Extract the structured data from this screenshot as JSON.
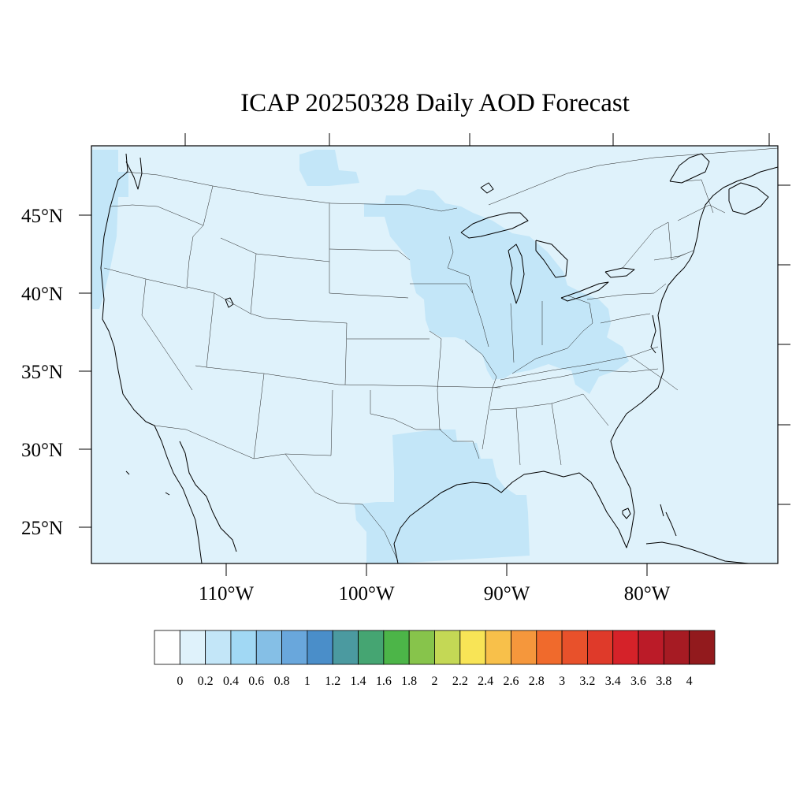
{
  "title": "ICAP 20250328 Daily AOD Forecast",
  "map": {
    "region": "Continental United States",
    "background_color": "#dff2fb",
    "frame_color": "#000000",
    "lon_range": [
      -121,
      -72
    ],
    "lat_range": [
      22.8,
      49.3
    ]
  },
  "axes": {
    "lat_ticks": [
      {
        "value": 45,
        "label": "45°N"
      },
      {
        "value": 40,
        "label": "40°N"
      },
      {
        "value": 35,
        "label": "35°N"
      },
      {
        "value": 30,
        "label": "30°N"
      },
      {
        "value": 25,
        "label": "25°N"
      }
    ],
    "lon_ticks": [
      {
        "value": -110,
        "label": "110°W"
      },
      {
        "value": -100,
        "label": "100°W"
      },
      {
        "value": -90,
        "label": "90°W"
      },
      {
        "value": -80,
        "label": "80°W"
      }
    ]
  },
  "aod_fields": [
    {
      "level": "0.2-0.4",
      "color": "#c3e6f8",
      "areas": [
        "Pacific Northwest coast",
        "Northern Rockies border",
        "Upper Midwest",
        "Great Lakes",
        "Ohio Valley",
        "Appalachians",
        "East Texas",
        "Gulf of Mexico"
      ]
    }
  ],
  "colorbar": {
    "colors": [
      "#ffffff",
      "#dff2fb",
      "#c3e6f8",
      "#a1d8f4",
      "#85bfe6",
      "#69a7dc",
      "#4a8ec9",
      "#4b9aa0",
      "#45a572",
      "#4cb548",
      "#87c44b",
      "#c4d855",
      "#f8e456",
      "#f8c04a",
      "#f5973c",
      "#f06a2c",
      "#e8512b",
      "#df3a2a",
      "#d52229",
      "#bb1b28",
      "#a61b23",
      "#921a1d"
    ],
    "labels": [
      "0",
      "0.2",
      "0.4",
      "0.6",
      "0.8",
      "1",
      "1.2",
      "1.4",
      "1.6",
      "1.8",
      "2",
      "2.2",
      "2.4",
      "2.6",
      "2.8",
      "3",
      "3.2",
      "3.4",
      "3.6",
      "3.8",
      "4"
    ]
  }
}
